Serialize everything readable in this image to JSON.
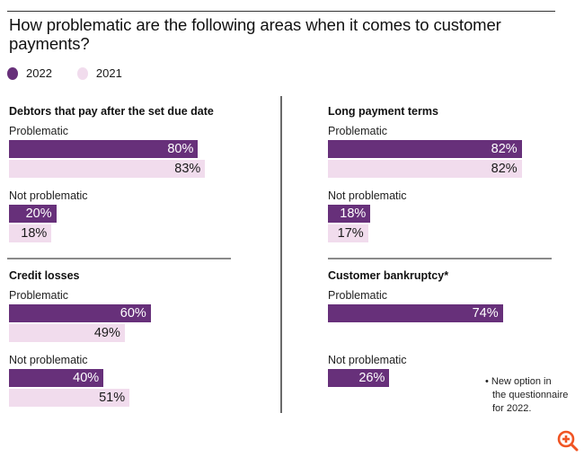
{
  "colors": {
    "series_2022": "#67307a",
    "series_2021": "#f1dced",
    "zoom_icon": "#f05423"
  },
  "chart_data": {
    "type": "bar",
    "orientation": "horizontal",
    "title": "How problematic are the following areas when it comes to customer payments?",
    "legend": [
      "2022",
      "2021"
    ],
    "legend_position": "top-left",
    "value_unit": "%",
    "xlim": [
      0,
      100
    ],
    "panels": [
      {
        "title": "Debtors that pay after the set due date",
        "groups": [
          {
            "label": "Problematic",
            "series": [
              {
                "name": "2022",
                "value": 80,
                "label": "80%"
              },
              {
                "name": "2021",
                "value": 83,
                "label": "83%"
              }
            ]
          },
          {
            "label": "Not problematic",
            "series": [
              {
                "name": "2022",
                "value": 20,
                "label": "20%"
              },
              {
                "name": "2021",
                "value": 18,
                "label": "18%"
              }
            ]
          }
        ]
      },
      {
        "title": "Long payment terms",
        "groups": [
          {
            "label": "Problematic",
            "series": [
              {
                "name": "2022",
                "value": 82,
                "label": "82%"
              },
              {
                "name": "2021",
                "value": 82,
                "label": "82%"
              }
            ]
          },
          {
            "label": "Not problematic",
            "series": [
              {
                "name": "2022",
                "value": 18,
                "label": "18%"
              },
              {
                "name": "2021",
                "value": 17,
                "label": "17%"
              }
            ]
          }
        ]
      },
      {
        "title": "Credit losses",
        "groups": [
          {
            "label": "Problematic",
            "series": [
              {
                "name": "2022",
                "value": 60,
                "label": "60%"
              },
              {
                "name": "2021",
                "value": 49,
                "label": "49%"
              }
            ]
          },
          {
            "label": "Not problematic",
            "series": [
              {
                "name": "2022",
                "value": 40,
                "label": "40%"
              },
              {
                "name": "2021",
                "value": 51,
                "label": "51%"
              }
            ]
          }
        ]
      },
      {
        "title": "Customer bankruptcy*",
        "groups": [
          {
            "label": "Problematic",
            "series": [
              {
                "name": "2022",
                "value": 74,
                "label": "74%"
              }
            ]
          },
          {
            "label": "Not problematic",
            "series": [
              {
                "name": "2022",
                "value": 26,
                "label": "26%"
              }
            ]
          }
        ]
      }
    ],
    "annotations": [
      "• New option in the questionnaire for 2022."
    ]
  },
  "footnote": {
    "line1": "• New option in",
    "line2": "the questionnaire",
    "line3": "for 2022."
  },
  "icons": {
    "zoom": "zoom-in-icon"
  }
}
